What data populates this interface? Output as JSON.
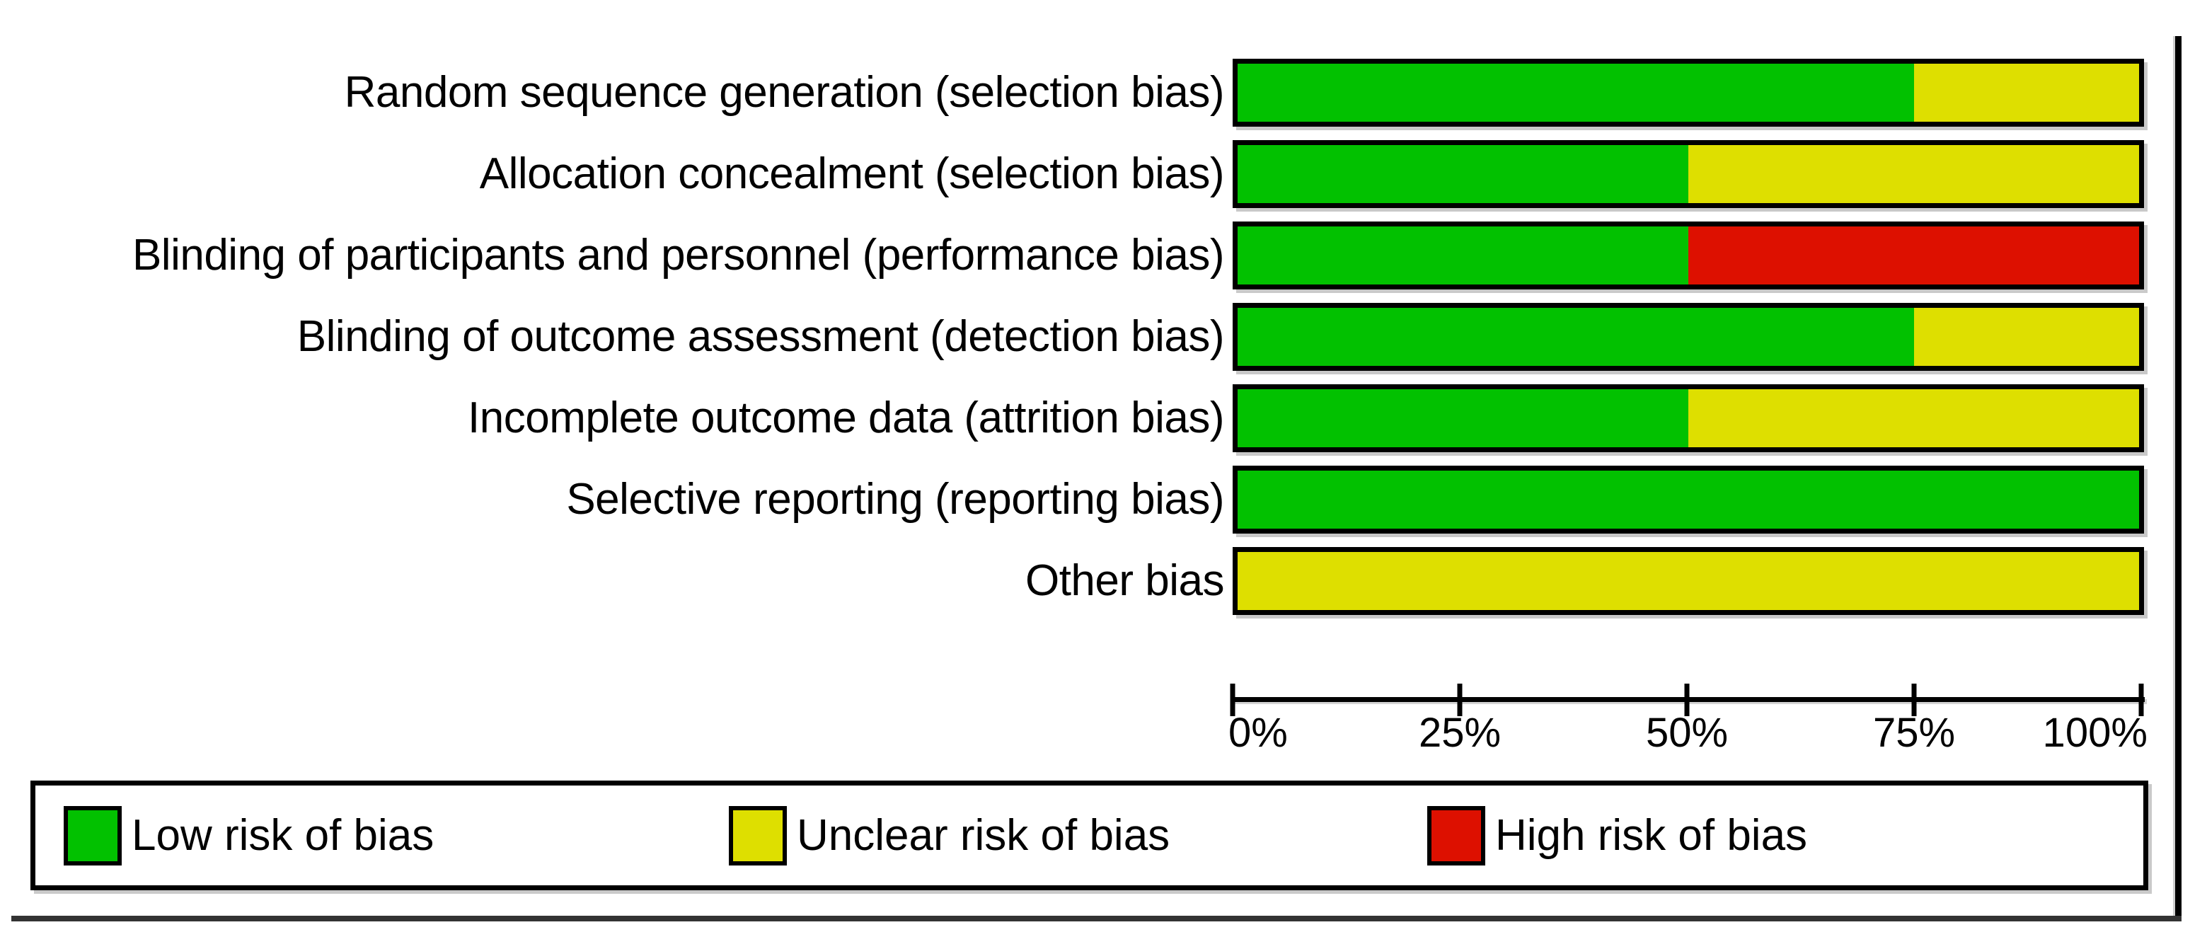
{
  "chart_data": {
    "type": "bar",
    "variant": "horizontal-stacked-100-percent",
    "title": "",
    "categories": [
      "Random sequence generation (selection bias)",
      "Allocation concealment (selection bias)",
      "Blinding of participants and personnel (performance bias)",
      "Blinding of outcome assessment (detection bias)",
      "Incomplete outcome data (attrition bias)",
      "Selective reporting (reporting bias)",
      "Other bias"
    ],
    "series": [
      {
        "name": "Low risk of bias",
        "color": "#02c100",
        "values": [
          75,
          50,
          50,
          75,
          50,
          100,
          0
        ]
      },
      {
        "name": "Unclear risk of bias",
        "color": "#dedf00",
        "values": [
          25,
          50,
          0,
          25,
          50,
          0,
          100
        ]
      },
      {
        "name": "High risk of bias",
        "color": "#dd1000",
        "values": [
          0,
          0,
          50,
          0,
          0,
          0,
          0
        ]
      }
    ],
    "xlabel": "",
    "ylabel": "",
    "xlim": [
      0,
      100
    ],
    "x_tick_labels": [
      "0%",
      "25%",
      "50%",
      "75%",
      "100%"
    ],
    "grid": false,
    "legend_position": "bottom",
    "colors": {
      "low_risk": "#02c100",
      "unclear_risk": "#dedf00",
      "high_risk": "#dd1000",
      "bar_border": "#000000",
      "background": "#ffffff"
    }
  }
}
